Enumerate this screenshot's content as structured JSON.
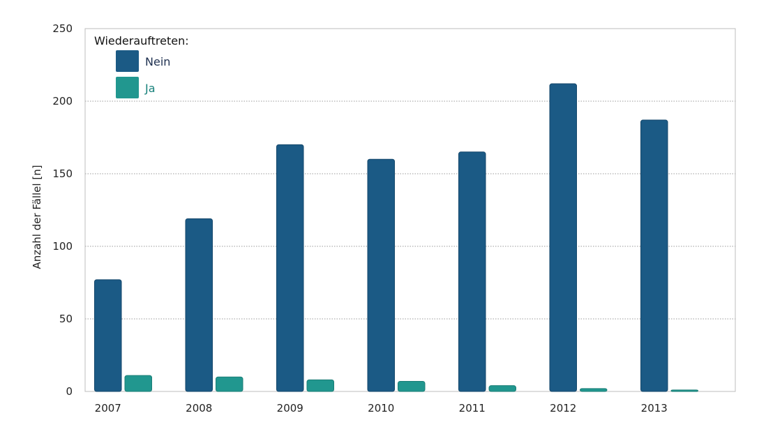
{
  "chart_data": {
    "type": "bar",
    "title": "",
    "xlabel": "",
    "ylabel": "Anzahl der Fällel [n]",
    "ylim": [
      0,
      250
    ],
    "yticks": [
      0,
      50,
      100,
      150,
      200,
      250
    ],
    "grid": true,
    "legend": {
      "title": "Wiederauftreten:",
      "position": "top-left"
    },
    "categories": [
      "2007",
      "2008",
      "2009",
      "2010",
      "2011",
      "2012",
      "2013"
    ],
    "series": [
      {
        "name": "Nein",
        "color": "#1b5a85",
        "values": [
          77,
          119,
          170,
          160,
          165,
          212,
          187
        ]
      },
      {
        "name": "Ja",
        "color": "#21978f",
        "values": [
          11,
          10,
          8,
          7,
          4,
          2,
          1
        ]
      }
    ]
  }
}
